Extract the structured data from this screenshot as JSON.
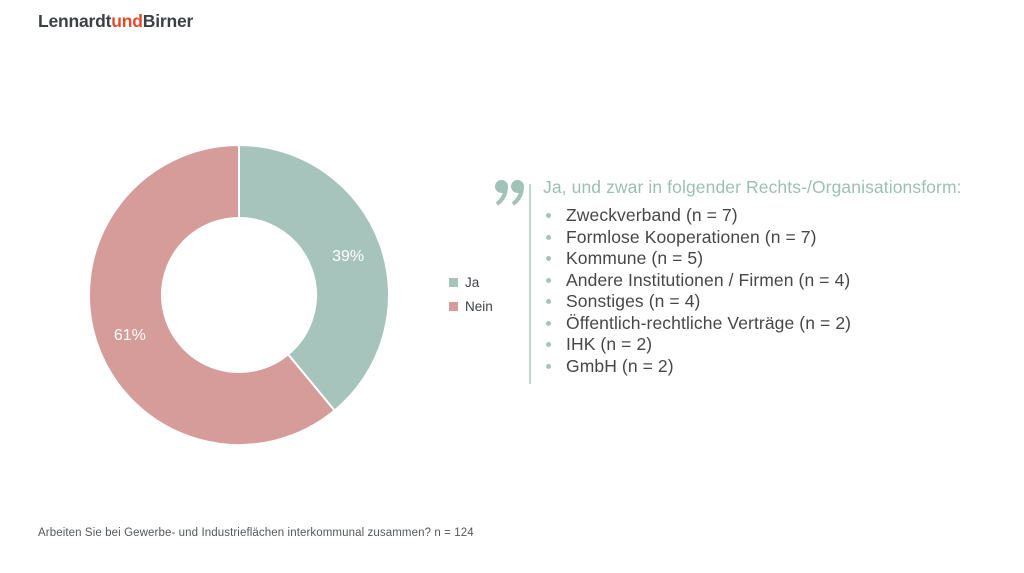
{
  "logo": {
    "part1": "Lennardt",
    "part2": "und",
    "part3": "Birner"
  },
  "chart_data": {
    "type": "pie",
    "subtype": "donut",
    "categories": [
      "Ja",
      "Nein"
    ],
    "values": [
      39,
      61
    ],
    "unit": "%",
    "labels": [
      "39%",
      "61%"
    ],
    "colors": [
      "#a6c4bc",
      "#d69c9a"
    ],
    "start_angle_deg": 0,
    "direction": "clockwise",
    "legend_position": "right",
    "inner_radius_ratio": 0.51
  },
  "quote": {
    "title": "Ja, und zwar in folgender Rechts-/Organisationsform:",
    "items": [
      "Zweckverband (n = 7)",
      "Formlose Kooperationen (n = 7)",
      "Kommune (n = 5)",
      "Andere Institutionen / Firmen (n = 4)",
      "Sonstiges (n = 4)",
      "Öffentlich-rechtliche Verträge (n = 2)",
      "IHK (n = 2)",
      "GmbH (n = 2)"
    ]
  },
  "footer": {
    "question": "Arbeiten Sie bei Gewerbe- und Industrieflächen interkommunal zusammen? n = 124"
  },
  "colors": {
    "teal": "#a6c4bc",
    "pink": "#d69c9a",
    "accent_text": "#9cbfb5",
    "divider": "#bed5cf",
    "logo_accent": "#e04b2d"
  }
}
